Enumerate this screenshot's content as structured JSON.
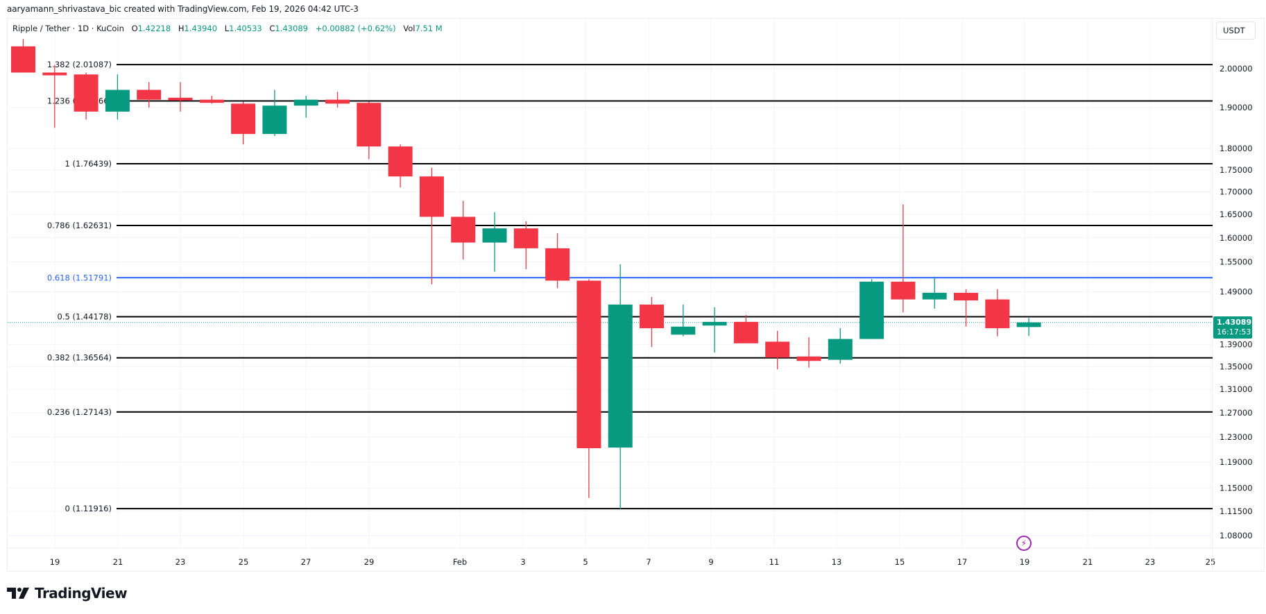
{
  "header": {
    "credit": "aaryamann_shrivastava_bic created with TradingView.com, Feb 19, 2026 04:42 UTC-3"
  },
  "legend": {
    "symbol": "Ripple / Tether · 1D · KuCoin",
    "open_label": "O",
    "open": "1.42218",
    "high_label": "H",
    "high": "1.43940",
    "low_label": "L",
    "low": "1.40533",
    "close_label": "C",
    "close": "1.43089",
    "change": "+0.00882 (+0.62%)",
    "vol_label": "Vol",
    "vol": "7.51 M"
  },
  "currency_button": "USDT",
  "price_tag": {
    "price": "1.43089",
    "countdown": "16:17:53"
  },
  "branding": {
    "logo_text": "TradingView"
  },
  "colors": {
    "up": "#089981",
    "down": "#f23645",
    "fib_highlight": "#2962ff",
    "fib_line": "#000000",
    "event_icon": "#9c27b0"
  },
  "chart_data": {
    "type": "candlestick",
    "title": "Ripple / Tether · 1D · KuCoin",
    "xlabel": "",
    "ylabel": "USDT",
    "y_scale": "log",
    "ylim": [
      1.06,
      2.08
    ],
    "grid": true,
    "y_ticks": [
      "2.00000",
      "1.90000",
      "1.80000",
      "1.75000",
      "1.70000",
      "1.65000",
      "1.60000",
      "1.55000",
      "1.49000",
      "1.39000",
      "1.35000",
      "1.31000",
      "1.27000",
      "1.23000",
      "1.19000",
      "1.15000",
      "1.11500",
      "1.08000"
    ],
    "x_ticks": [
      "19",
      "21",
      "23",
      "25",
      "27",
      "29",
      "Feb",
      "3",
      "5",
      "7",
      "9",
      "11",
      "13",
      "15",
      "17",
      "19",
      "21",
      "23",
      "25"
    ],
    "candles": [
      {
        "date": "Jan 18",
        "o": 2.06,
        "h": 2.08,
        "l": 1.99,
        "c": 1.99
      },
      {
        "date": "Jan 19",
        "o": 1.99,
        "h": 2.01,
        "l": 1.85,
        "c": 1.985
      },
      {
        "date": "Jan 20",
        "o": 1.985,
        "h": 1.99,
        "l": 1.87,
        "c": 1.89
      },
      {
        "date": "Jan 21",
        "o": 1.89,
        "h": 1.985,
        "l": 1.87,
        "c": 1.945
      },
      {
        "date": "Jan 22",
        "o": 1.945,
        "h": 1.965,
        "l": 1.9,
        "c": 1.92
      },
      {
        "date": "Jan 23",
        "o": 1.925,
        "h": 1.965,
        "l": 1.89,
        "c": 1.92
      },
      {
        "date": "Jan 24",
        "o": 1.92,
        "h": 1.93,
        "l": 1.91,
        "c": 1.912
      },
      {
        "date": "Jan 25",
        "o": 1.91,
        "h": 1.915,
        "l": 1.81,
        "c": 1.835
      },
      {
        "date": "Jan 26",
        "o": 1.835,
        "h": 1.945,
        "l": 1.83,
        "c": 1.905
      },
      {
        "date": "Jan 27",
        "o": 1.905,
        "h": 1.93,
        "l": 1.875,
        "c": 1.92
      },
      {
        "date": "Jan 28",
        "o": 1.92,
        "h": 1.94,
        "l": 1.9,
        "c": 1.91
      },
      {
        "date": "Jan 29",
        "o": 1.912,
        "h": 1.915,
        "l": 1.775,
        "c": 1.805
      },
      {
        "date": "Jan 30",
        "o": 1.805,
        "h": 1.81,
        "l": 1.71,
        "c": 1.735
      },
      {
        "date": "Jan 31",
        "o": 1.735,
        "h": 1.755,
        "l": 1.505,
        "c": 1.645
      },
      {
        "date": "Feb 1",
        "o": 1.645,
        "h": 1.68,
        "l": 1.555,
        "c": 1.59
      },
      {
        "date": "Feb 2",
        "o": 1.59,
        "h": 1.655,
        "l": 1.53,
        "c": 1.62
      },
      {
        "date": "Feb 3",
        "o": 1.62,
        "h": 1.635,
        "l": 1.535,
        "c": 1.578
      },
      {
        "date": "Feb 4",
        "o": 1.578,
        "h": 1.61,
        "l": 1.497,
        "c": 1.512
      },
      {
        "date": "Feb 5",
        "o": 1.512,
        "h": 1.515,
        "l": 1.135,
        "c": 1.212
      },
      {
        "date": "Feb 6",
        "o": 1.213,
        "h": 1.545,
        "l": 1.118,
        "c": 1.465
      },
      {
        "date": "Feb 7",
        "o": 1.465,
        "h": 1.48,
        "l": 1.385,
        "c": 1.42
      },
      {
        "date": "Feb 8",
        "o": 1.408,
        "h": 1.465,
        "l": 1.405,
        "c": 1.423
      },
      {
        "date": "Feb 9",
        "o": 1.425,
        "h": 1.46,
        "l": 1.375,
        "c": 1.432
      },
      {
        "date": "Feb 10",
        "o": 1.432,
        "h": 1.445,
        "l": 1.405,
        "c": 1.392
      },
      {
        "date": "Feb 11",
        "o": 1.395,
        "h": 1.415,
        "l": 1.345,
        "c": 1.366
      },
      {
        "date": "Feb 12",
        "o": 1.368,
        "h": 1.403,
        "l": 1.348,
        "c": 1.36
      },
      {
        "date": "Feb 13",
        "o": 1.362,
        "h": 1.42,
        "l": 1.355,
        "c": 1.4
      },
      {
        "date": "Feb 14",
        "o": 1.4,
        "h": 1.515,
        "l": 1.4,
        "c": 1.51
      },
      {
        "date": "Feb 15",
        "o": 1.51,
        "h": 1.672,
        "l": 1.45,
        "c": 1.475
      },
      {
        "date": "Feb 16",
        "o": 1.475,
        "h": 1.52,
        "l": 1.457,
        "c": 1.488
      },
      {
        "date": "Feb 17",
        "o": 1.488,
        "h": 1.495,
        "l": 1.423,
        "c": 1.473
      },
      {
        "date": "Feb 18",
        "o": 1.475,
        "h": 1.495,
        "l": 1.405,
        "c": 1.42
      },
      {
        "date": "Feb 19",
        "o": 1.42218,
        "h": 1.4394,
        "l": 1.40533,
        "c": 1.43089
      }
    ],
    "fib_levels": [
      {
        "ratio": "1.382",
        "price": "2.01087",
        "label": "1.382 (2.01087)",
        "highlight": false
      },
      {
        "ratio": "1.236",
        "price": "1.91666",
        "label": "1.236 (1.91666)",
        "highlight": false
      },
      {
        "ratio": "1",
        "price": "1.76439",
        "label": "1 (1.76439)",
        "highlight": false
      },
      {
        "ratio": "0.786",
        "price": "1.62631",
        "label": "0.786 (1.62631)",
        "highlight": false
      },
      {
        "ratio": "0.618",
        "price": "1.51791",
        "label": "0.618 (1.51791)",
        "highlight": true
      },
      {
        "ratio": "0.5",
        "price": "1.44178",
        "label": "0.5 (1.44178)",
        "highlight": false
      },
      {
        "ratio": "0.382",
        "price": "1.36564",
        "label": "0.382 (1.36564)",
        "highlight": false
      },
      {
        "ratio": "0.236",
        "price": "1.27143",
        "label": "0.236 (1.27143)",
        "highlight": false
      },
      {
        "ratio": "0",
        "price": "1.11916",
        "label": "0 (1.11916)",
        "highlight": false
      }
    ],
    "current_price": 1.43089
  }
}
